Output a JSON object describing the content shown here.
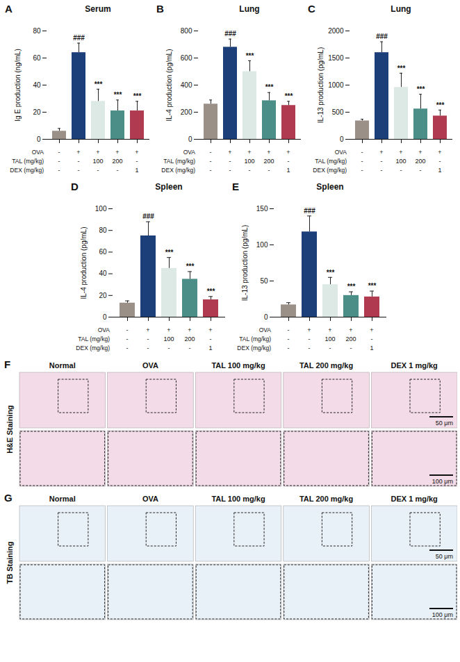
{
  "chart_data": [
    {
      "type": "bar",
      "panel_label": "A",
      "title": "Serum",
      "y_label": "Ig E production (ng/mL)",
      "categories": [
        null,
        null,
        null,
        null,
        null
      ],
      "values": [
        6,
        64,
        28,
        21,
        21
      ],
      "errors": [
        2,
        7,
        9,
        8,
        7
      ],
      "colors": [
        "#9b9087",
        "#1c3f7a",
        "#dde9e5",
        "#4b8d87",
        "#b03a4f"
      ],
      "annotations": [
        null,
        "###",
        "***",
        "***",
        "***"
      ],
      "ylim": [
        0,
        80
      ],
      "yticks": [
        0,
        20,
        40,
        60,
        80
      ],
      "treatment_table": [
        {
          "label": "OVA",
          "values": [
            "-",
            "+",
            "+",
            "+",
            "+"
          ]
        },
        {
          "label": "TAL (mg/kg)",
          "values": [
            "-",
            "-",
            "100",
            "200",
            "-"
          ]
        },
        {
          "label": "DEX (mg/kg)",
          "values": [
            "-",
            "-",
            "-",
            "-",
            "1"
          ]
        }
      ]
    },
    {
      "type": "bar",
      "panel_label": "B",
      "title": "Lung",
      "y_label": "IL-4 production (pg/mL)",
      "categories": [
        null,
        null,
        null,
        null,
        null
      ],
      "values": [
        260,
        680,
        500,
        285,
        250
      ],
      "errors": [
        30,
        60,
        80,
        60,
        30
      ],
      "colors": [
        "#9b9087",
        "#1c3f7a",
        "#dde9e5",
        "#4b8d87",
        "#b03a4f"
      ],
      "annotations": [
        null,
        "###",
        "***",
        "***",
        "***"
      ],
      "ylim": [
        0,
        800
      ],
      "yticks": [
        0,
        200,
        400,
        600,
        800
      ],
      "treatment_table": [
        {
          "label": "OVA",
          "values": [
            "-",
            "+",
            "+",
            "+",
            "+"
          ]
        },
        {
          "label": "TAL (mg/kg)",
          "values": [
            "-",
            "-",
            "100",
            "200",
            "-"
          ]
        },
        {
          "label": "DEX (mg/kg)",
          "values": [
            "-",
            "-",
            "-",
            "-",
            "1"
          ]
        }
      ]
    },
    {
      "type": "bar",
      "panel_label": "C",
      "title": "Lung",
      "y_label": "IL-13 production (pg/mL)",
      "categories": [
        null,
        null,
        null,
        null,
        null
      ],
      "values": [
        340,
        1600,
        960,
        560,
        430
      ],
      "errors": [
        30,
        200,
        260,
        270,
        110
      ],
      "colors": [
        "#9b9087",
        "#1c3f7a",
        "#dde9e5",
        "#4b8d87",
        "#b03a4f"
      ],
      "annotations": [
        null,
        "###",
        "***",
        "***",
        "***"
      ],
      "ylim": [
        0,
        2000
      ],
      "yticks": [
        0,
        500,
        1000,
        1500,
        2000
      ],
      "treatment_table": [
        {
          "label": "OVA",
          "values": [
            "-",
            "+",
            "+",
            "+",
            "+"
          ]
        },
        {
          "label": "TAL (mg/kg)",
          "values": [
            "-",
            "-",
            "100",
            "200",
            "-"
          ]
        },
        {
          "label": "DEX (mg/kg)",
          "values": [
            "-",
            "-",
            "-",
            "-",
            "1"
          ]
        }
      ]
    },
    {
      "type": "bar",
      "panel_label": "D",
      "title": "Spleen",
      "y_label": "IL-4 production (pg/mL)",
      "categories": [
        null,
        null,
        null,
        null,
        null
      ],
      "values": [
        13,
        75,
        45,
        35,
        16
      ],
      "errors": [
        2,
        13,
        10,
        7,
        3
      ],
      "colors": [
        "#9b9087",
        "#1c3f7a",
        "#dde9e5",
        "#4b8d87",
        "#b03a4f"
      ],
      "annotations": [
        null,
        "###",
        "***",
        "***",
        "***"
      ],
      "ylim": [
        0,
        100
      ],
      "yticks": [
        0,
        20,
        40,
        60,
        80,
        100
      ],
      "treatment_table": [
        {
          "label": "OVA",
          "values": [
            "-",
            "+",
            "+",
            "+",
            "+"
          ]
        },
        {
          "label": "TAL (mg/kg)",
          "values": [
            "-",
            "-",
            "100",
            "200",
            "-"
          ]
        },
        {
          "label": "DEX (mg/kg)",
          "values": [
            "-",
            "-",
            "-",
            "-",
            "1"
          ]
        }
      ]
    },
    {
      "type": "bar",
      "panel_label": "E",
      "title": "Spleen",
      "y_label": "IL-13 production (pg/mL)",
      "categories": [
        null,
        null,
        null,
        null,
        null
      ],
      "values": [
        17,
        118,
        45,
        30,
        28
      ],
      "errors": [
        3,
        22,
        10,
        5,
        8
      ],
      "colors": [
        "#9b9087",
        "#1c3f7a",
        "#dde9e5",
        "#4b8d87",
        "#b03a4f"
      ],
      "annotations": [
        null,
        "###",
        "***",
        "***",
        "***"
      ],
      "ylim": [
        0,
        150
      ],
      "yticks": [
        0,
        50,
        100,
        150
      ],
      "treatment_table": [
        {
          "label": "OVA",
          "values": [
            "-",
            "+",
            "+",
            "+",
            "+"
          ]
        },
        {
          "label": "TAL (mg/kg)",
          "values": [
            "-",
            "-",
            "100",
            "200",
            "-"
          ]
        },
        {
          "label": "DEX (mg/kg)",
          "values": [
            "-",
            "-",
            "-",
            "-",
            "1"
          ]
        }
      ]
    }
  ],
  "image_panels": [
    {
      "panel_label": "F",
      "row_label": "H&E Staining",
      "columns": [
        "Normal",
        "OVA",
        "TAL 100 mg/kg",
        "TAL 200 mg/kg",
        "DEX 1 mg/kg"
      ],
      "scale_bars": [
        "50 μm",
        "100 μm"
      ]
    },
    {
      "panel_label": "G",
      "row_label": "TB Staining",
      "columns": [
        "Normal",
        "OVA",
        "TAL 100 mg/kg",
        "TAL 200 mg/kg",
        "DEX 1 mg/kg"
      ],
      "scale_bars": [
        "50 μm",
        "100 μm"
      ]
    }
  ]
}
